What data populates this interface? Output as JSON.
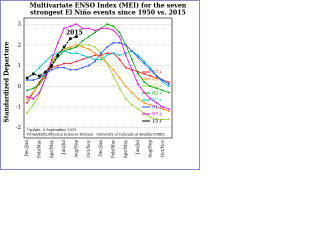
{
  "chart_data": {
    "type": "line",
    "title": "Multivariate ENSO Index (MEI) for the seven",
    "subtitle": "strongest El Niño events since 1950 vs. 2015",
    "y_label": "Standardized Departure",
    "annotation": "2015",
    "footer": [
      "Update: 5 September 2015",
      "NOAA/ESRL/Physical Sciences Division - University of Colorado at Boulder/CIRES"
    ],
    "categories": [
      "Dec/Jan",
      null,
      "Feb/Mar",
      null,
      "Apr/May",
      null,
      "Jun/Jul",
      null,
      "Aug/Sep",
      null,
      "Oct/Nov",
      null,
      "Dec/Jan",
      null,
      "Feb/Mar",
      null,
      "Apr/May",
      null,
      "Jun/Jul",
      null,
      "Aug/Sep",
      null,
      "Oct/Nov",
      null
    ],
    "ylim": [
      -2.5,
      3.3
    ],
    "yticks": [
      -2,
      -1,
      0,
      1,
      2,
      3
    ],
    "grid": true,
    "series": [
      {
        "name": "57+",
        "color": "#e41a1c",
        "values": [
          -0.8,
          -0.3,
          0.2,
          0.6,
          0.9,
          1.0,
          1.1,
          1.1,
          1.2,
          1.3,
          1.4,
          1.5,
          1.5,
          1.6,
          1.6,
          1.3,
          0.9,
          0.8,
          0.7,
          0.6,
          0.5,
          0.4,
          0.3,
          0.2
        ]
      },
      {
        "name": "65+",
        "color": "#ff8c00",
        "values": [
          -0.6,
          -0.3,
          0.1,
          0.6,
          1.2,
          1.6,
          1.8,
          1.9,
          2.0,
          1.9,
          1.8,
          1.6,
          1.4,
          1.1,
          0.8,
          0.4,
          0.0,
          -0.3,
          -0.6,
          -0.8,
          -0.9,
          -1.0,
          -1.1,
          -1.2
        ]
      },
      {
        "name": "72+",
        "color": "#9acd32",
        "values": [
          -1.3,
          -0.9,
          -0.4,
          0.4,
          1.1,
          1.6,
          1.8,
          1.8,
          1.9,
          2.0,
          2.0,
          1.9,
          1.6,
          1.1,
          0.5,
          -0.1,
          -0.6,
          -0.9,
          -1.1,
          -1.3,
          -1.5,
          -1.6,
          -1.6,
          -1.6
        ]
      },
      {
        "name": "82+",
        "color": "#00a000",
        "values": [
          -0.2,
          -0.1,
          0.1,
          0.5,
          1.0,
          1.4,
          1.7,
          1.8,
          1.9,
          2.2,
          2.4,
          2.6,
          2.8,
          3.0,
          2.9,
          2.6,
          2.0,
          1.3,
          0.6,
          0.2,
          0.0,
          -0.1,
          -0.2,
          -0.3
        ]
      },
      {
        "name": "87+",
        "color": "#00c0c0",
        "values": [
          0.4,
          0.6,
          0.9,
          1.2,
          1.5,
          1.6,
          1.7,
          1.6,
          1.6,
          1.5,
          1.4,
          1.3,
          1.3,
          1.5,
          1.6,
          1.5,
          1.6,
          1.7,
          1.5,
          1.2,
          0.9,
          0.5,
          0.2,
          0.0
        ]
      },
      {
        "name": "91+",
        "color": "#1f4fff",
        "values": [
          0.3,
          0.3,
          0.4,
          0.6,
          0.8,
          0.9,
          0.9,
          0.8,
          0.8,
          0.9,
          1.0,
          1.2,
          1.6,
          1.9,
          2.1,
          2.1,
          2.0,
          1.7,
          1.4,
          1.1,
          0.8,
          0.5,
          0.3,
          0.1
        ]
      },
      {
        "name": "97+",
        "color": "#e000e0",
        "values": [
          -0.5,
          -0.6,
          -0.3,
          0.4,
          1.3,
          2.1,
          2.8,
          2.9,
          3.0,
          2.8,
          2.8,
          2.7,
          2.8,
          2.8,
          2.7,
          2.4,
          1.5,
          0.8,
          0.1,
          -0.3,
          -0.6,
          -0.8,
          -1.0,
          -1.1
        ]
      },
      {
        "name": "15+",
        "color": "#000000",
        "dashed": true,
        "values": [
          0.4,
          0.6,
          0.5,
          0.7,
          1.0,
          1.5,
          1.9,
          2.3,
          2.4,
          null,
          null,
          null,
          null,
          null,
          null,
          null,
          null,
          null,
          null,
          null,
          null,
          null,
          null,
          null
        ]
      }
    ]
  }
}
